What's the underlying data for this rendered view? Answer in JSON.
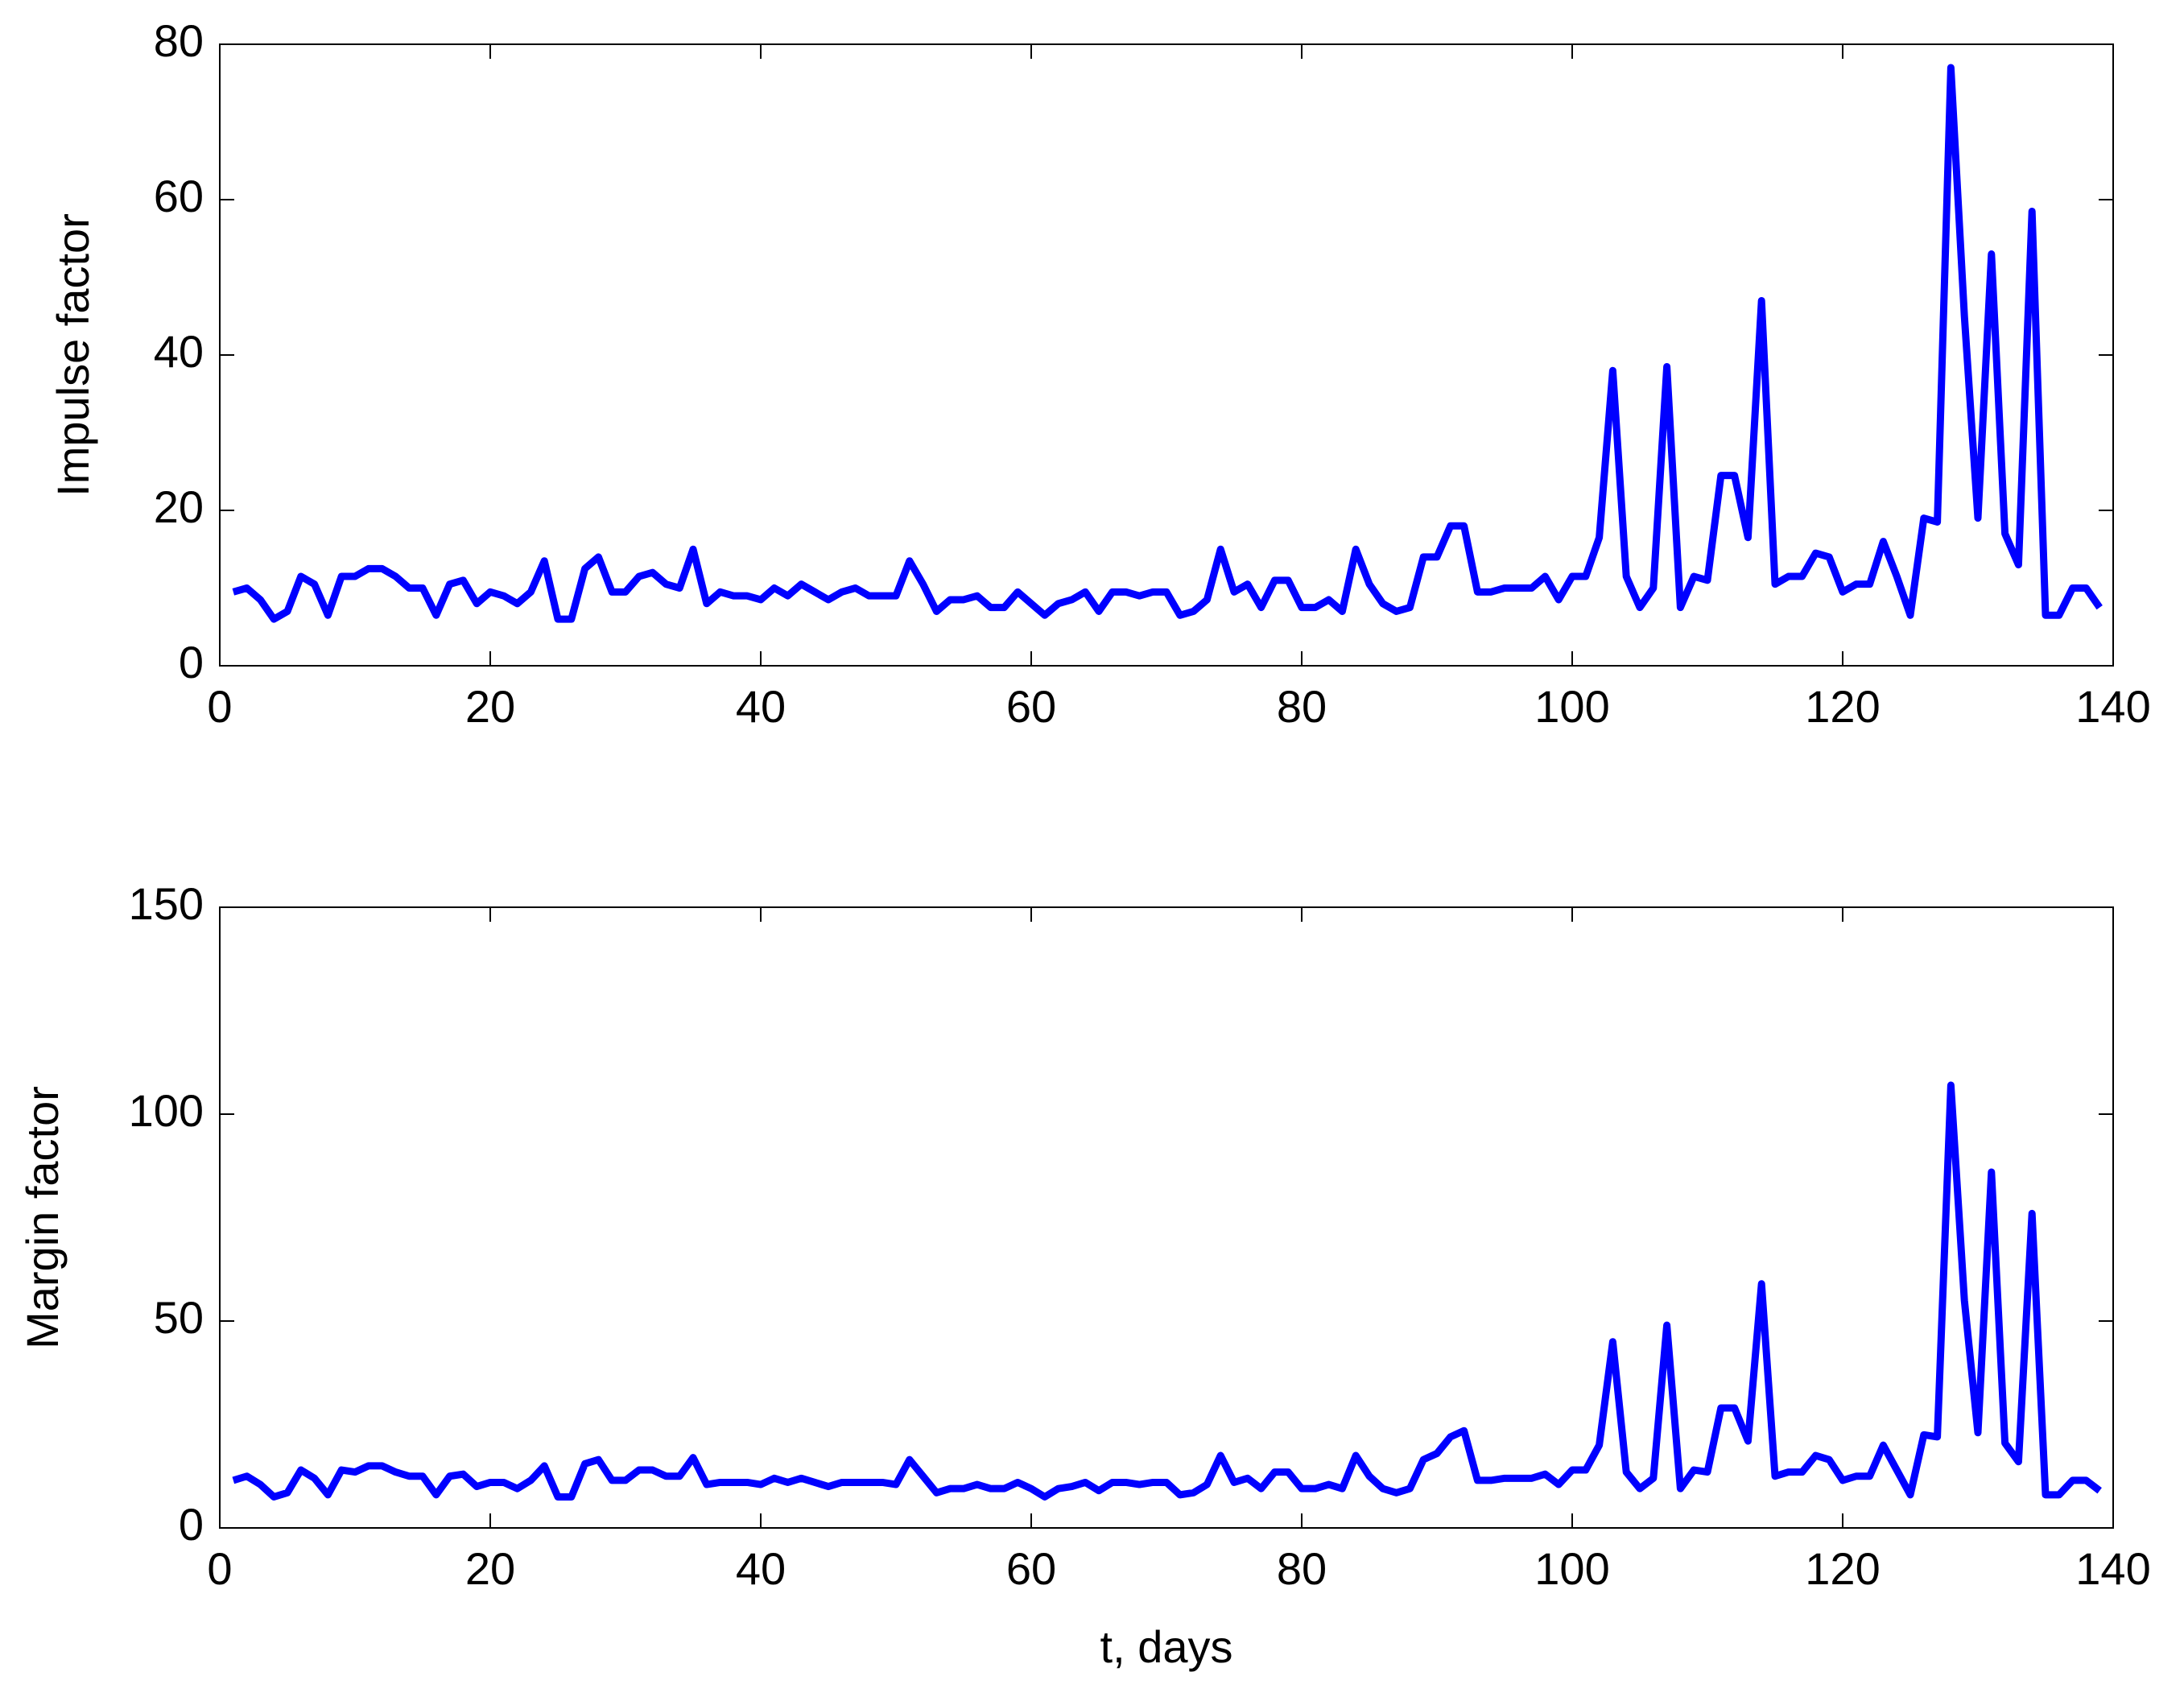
{
  "chart_data": [
    {
      "type": "line",
      "ylabel": "Impulse factor",
      "x": [
        1,
        2,
        3,
        4,
        5,
        6,
        7,
        8,
        9,
        10,
        11,
        12,
        13,
        14,
        15,
        16,
        17,
        18,
        19,
        20,
        21,
        22,
        23,
        24,
        25,
        26,
        27,
        28,
        29,
        30,
        31,
        32,
        33,
        34,
        35,
        36,
        37,
        38,
        39,
        40,
        41,
        42,
        43,
        44,
        45,
        46,
        47,
        48,
        49,
        50,
        51,
        52,
        53,
        54,
        55,
        56,
        57,
        58,
        59,
        60,
        61,
        62,
        63,
        64,
        65,
        66,
        67,
        68,
        69,
        70,
        71,
        72,
        73,
        74,
        75,
        76,
        77,
        78,
        79,
        80,
        81,
        82,
        83,
        84,
        85,
        86,
        87,
        88,
        89,
        90,
        91,
        92,
        93,
        94,
        95,
        96,
        97,
        98,
        99,
        100,
        101,
        102,
        103,
        104,
        105,
        106,
        107,
        108,
        109,
        110,
        111,
        112,
        113,
        114,
        115,
        116,
        117,
        118,
        119,
        120,
        121,
        122,
        123,
        124,
        125,
        126,
        127,
        128,
        129,
        130,
        131,
        132,
        133,
        134,
        135,
        136,
        137,
        138,
        139
      ],
      "series": [
        {
          "color": "#0000ff",
          "values": [
            9.5,
            10,
            8.5,
            6,
            7,
            11.5,
            10.5,
            6.5,
            11.5,
            11.5,
            12.5,
            12.5,
            11.5,
            10,
            10,
            6.5,
            10.5,
            11,
            8,
            9.5,
            9,
            8,
            9.5,
            13.5,
            6,
            6,
            12.5,
            14,
            9.5,
            9.5,
            11.5,
            12,
            10.5,
            10,
            15,
            8,
            9.5,
            9,
            9,
            8.5,
            10,
            9,
            10.5,
            9.5,
            8.5,
            9.5,
            10,
            9,
            9,
            9,
            13.5,
            10.5,
            7,
            8.5,
            8.5,
            9,
            7.5,
            7.5,
            9.5,
            8,
            6.5,
            8,
            8.5,
            9.5,
            7,
            9.5,
            9.5,
            9,
            9.5,
            9.5,
            6.5,
            7,
            8.5,
            15,
            9.5,
            10.5,
            7.5,
            11,
            11,
            7.5,
            7.5,
            8.5,
            7,
            15,
            10.5,
            8,
            7,
            7.5,
            14,
            14,
            18,
            18,
            9.5,
            9.5,
            10,
            10,
            10,
            11.5,
            8.5,
            11.5,
            11.5,
            16.5,
            38,
            11.5,
            7.5,
            10,
            38.5,
            7.5,
            11.5,
            11,
            24.5,
            24.5,
            16.5,
            47,
            10.5,
            11.5,
            11.5,
            14.5,
            14,
            9.5,
            10.5,
            10.5,
            16,
            11.5,
            6.5,
            19,
            18.5,
            77,
            45,
            19,
            53,
            17,
            13,
            58.5,
            6.5,
            6.5,
            10,
            10,
            7.5
          ]
        }
      ],
      "xlim": [
        0,
        140
      ],
      "xticks": [
        0,
        20,
        40,
        60,
        80,
        100,
        120,
        140
      ],
      "ylim": [
        0,
        80
      ],
      "yticks": [
        0,
        20,
        40,
        60,
        80
      ]
    },
    {
      "type": "line",
      "ylabel": "Margin factor",
      "xlabel": "t, days",
      "x": [
        1,
        2,
        3,
        4,
        5,
        6,
        7,
        8,
        9,
        10,
        11,
        12,
        13,
        14,
        15,
        16,
        17,
        18,
        19,
        20,
        21,
        22,
        23,
        24,
        25,
        26,
        27,
        28,
        29,
        30,
        31,
        32,
        33,
        34,
        35,
        36,
        37,
        38,
        39,
        40,
        41,
        42,
        43,
        44,
        45,
        46,
        47,
        48,
        49,
        50,
        51,
        52,
        53,
        54,
        55,
        56,
        57,
        58,
        59,
        60,
        61,
        62,
        63,
        64,
        65,
        66,
        67,
        68,
        69,
        70,
        71,
        72,
        73,
        74,
        75,
        76,
        77,
        78,
        79,
        80,
        81,
        82,
        83,
        84,
        85,
        86,
        87,
        88,
        89,
        90,
        91,
        92,
        93,
        94,
        95,
        96,
        97,
        98,
        99,
        100,
        101,
        102,
        103,
        104,
        105,
        106,
        107,
        108,
        109,
        110,
        111,
        112,
        113,
        114,
        115,
        116,
        117,
        118,
        119,
        120,
        121,
        122,
        123,
        124,
        125,
        126,
        127,
        128,
        129,
        130,
        131,
        132,
        133,
        134,
        135,
        136,
        137,
        138,
        139
      ],
      "series": [
        {
          "color": "#0000ff",
          "values": [
            11.5,
            12.5,
            10.5,
            7.5,
            8.5,
            14,
            12,
            8,
            14,
            13.5,
            15,
            15,
            13.5,
            12.5,
            12.5,
            8,
            12.5,
            13,
            10,
            11,
            11,
            9.5,
            11.5,
            15,
            7.5,
            7.5,
            15.5,
            16.5,
            11.5,
            11.5,
            14,
            14,
            12.5,
            12.5,
            17,
            10.5,
            11,
            11,
            11,
            10.5,
            12,
            11,
            12,
            11,
            10,
            11,
            11,
            11,
            11,
            10.5,
            16.5,
            12.5,
            8.5,
            9.5,
            9.5,
            10.5,
            9.5,
            9.5,
            11,
            9.5,
            7.5,
            9.5,
            10,
            11,
            9,
            11,
            11,
            10.5,
            11,
            11,
            8,
            8.5,
            10.5,
            17.5,
            11,
            12,
            9.5,
            13.5,
            13.5,
            9.5,
            9.5,
            10.5,
            9.5,
            17.5,
            12.5,
            9.5,
            8.5,
            9.5,
            16.5,
            18,
            22,
            23.5,
            11.5,
            11.5,
            12,
            12,
            12,
            13,
            10.5,
            14,
            14,
            20,
            45,
            13.5,
            9.5,
            12,
            49,
            9.5,
            14,
            13.5,
            29,
            29,
            21,
            59,
            12.5,
            13.5,
            13.5,
            17.5,
            16.5,
            11.5,
            12.5,
            12.5,
            20,
            14,
            8,
            22.5,
            22,
            107,
            55,
            23,
            86,
            20.5,
            16,
            76,
            8,
            8,
            11.5,
            11.5,
            9
          ]
        }
      ],
      "xlim": [
        0,
        140
      ],
      "xticks": [
        0,
        20,
        40,
        60,
        80,
        100,
        120,
        140
      ],
      "ylim": [
        0,
        150
      ],
      "yticks": [
        0,
        50,
        100,
        150
      ]
    }
  ]
}
